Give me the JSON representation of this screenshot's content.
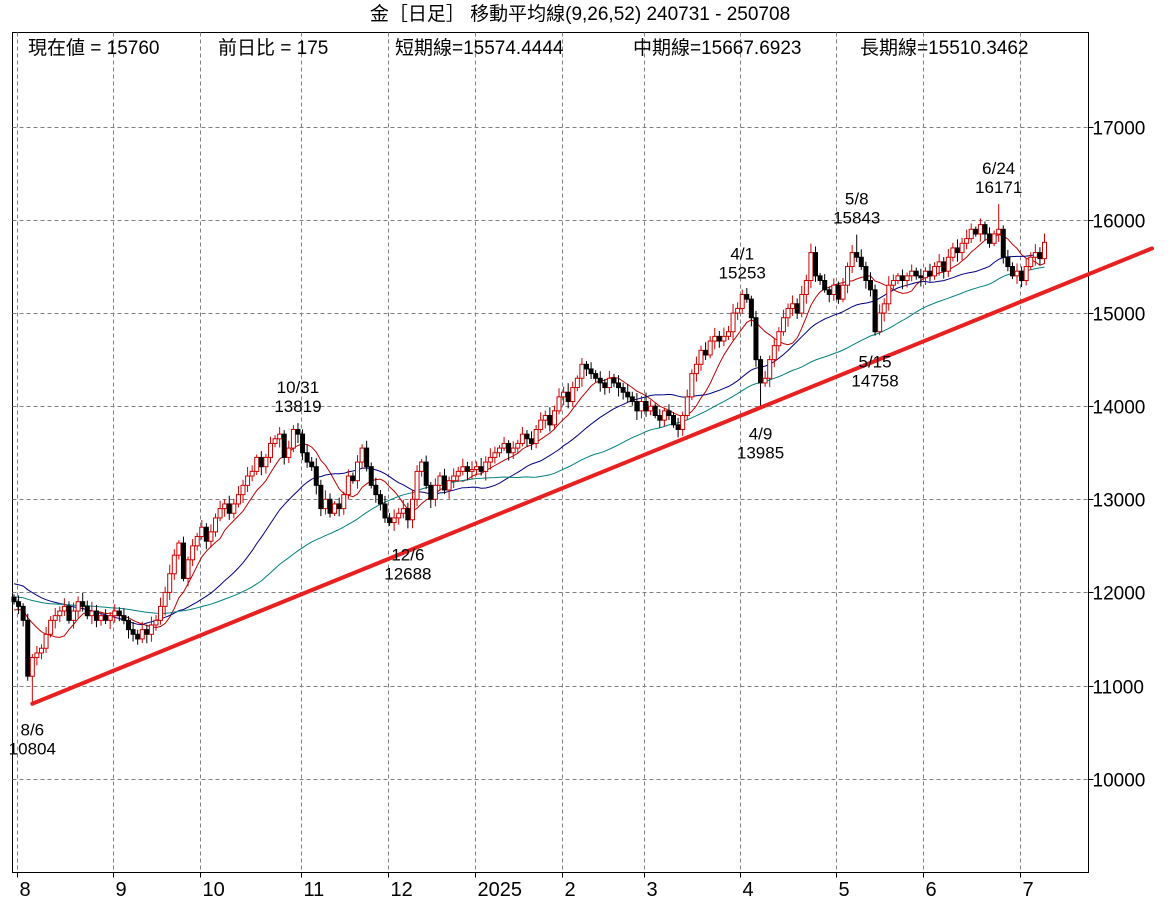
{
  "title": "金［日足］ 移動平均線(9,26,52)  240731 - 250708",
  "info": {
    "current": "現在値 = 15760",
    "change": "前日比 = 175",
    "short_ma": "短期線=15574.4444",
    "mid_ma": "中期線=15667.6923",
    "long_ma": "長期線=15510.3462"
  },
  "colors": {
    "up": "#cc0000",
    "down": "#000000",
    "ma_short": "#c00000",
    "ma_mid": "#000080",
    "ma_long": "#008080",
    "trendline": "#e82020",
    "grid": "#808080"
  },
  "chart_data": {
    "type": "candlestick",
    "ylim": [
      9000,
      18000
    ],
    "yticks": [
      "10000",
      "11000",
      "12000",
      "13000",
      "14000",
      "15000",
      "16000",
      "17000"
    ],
    "grid": true,
    "moving_averages": [
      9,
      26,
      52
    ],
    "months": [
      {
        "label": "",
        "closes": [
          11900
        ]
      },
      {
        "label": "8",
        "closes": [
          11850,
          11700,
          11100,
          11300,
          11350,
          11400,
          11550,
          11700,
          11750,
          11800,
          11850,
          11700,
          11800,
          11900,
          11850,
          11750,
          11800,
          11700,
          11750,
          11700,
          11750
        ]
      },
      {
        "label": "9",
        "closes": [
          11800,
          11750,
          11700,
          11600,
          11550,
          11500,
          11600,
          11550,
          11650,
          11700,
          11850,
          12000,
          12200,
          12400,
          12530,
          12150,
          12350,
          12500,
          12600
        ]
      },
      {
        "label": "10",
        "closes": [
          12700,
          12550,
          12650,
          12800,
          12900,
          12950,
          12850,
          12950,
          13050,
          13150,
          13250,
          13300,
          13450,
          13350,
          13450,
          13600,
          13650,
          13700,
          13450,
          13550,
          13750,
          13700
        ]
      },
      {
        "label": "11",
        "closes": [
          13500,
          13400,
          13350,
          13150,
          12900,
          13000,
          12850,
          12950,
          12900,
          13050,
          13250,
          13200,
          13400,
          13550,
          13350,
          13150,
          13050,
          12950,
          12800
        ]
      },
      {
        "label": "12",
        "closes": [
          12750,
          12800,
          12850,
          12900,
          12780,
          13000,
          13300,
          13400,
          13150,
          13000,
          13150,
          13250,
          13100,
          13200,
          13250,
          13300,
          13350,
          13300,
          13320
        ]
      },
      {
        "label": "2025",
        "closes": [
          13350,
          13300,
          13400,
          13450,
          13500,
          13550,
          13600,
          13500,
          13550,
          13600,
          13700,
          13650,
          13600,
          13750,
          13850,
          13900,
          13800,
          13950,
          14100
        ]
      },
      {
        "label": "2",
        "closes": [
          14150,
          14050,
          14200,
          14300,
          14450,
          14400,
          14350,
          14300,
          14250,
          14200,
          14300,
          14250,
          14200,
          14150,
          14100,
          14050,
          13950,
          14050
        ]
      },
      {
        "label": "3",
        "closes": [
          13950,
          14000,
          13900,
          13850,
          13950,
          13900,
          13800,
          13750,
          13900,
          14100,
          14350,
          14450,
          14600,
          14550,
          14700,
          14750,
          14700,
          14750,
          14800,
          15000,
          15050
        ]
      },
      {
        "label": "4",
        "closes": [
          15200,
          15150,
          14950,
          14500,
          14250,
          14300,
          14500,
          14650,
          14800,
          14950,
          15050,
          15100,
          15000,
          15200,
          15350,
          15650,
          15400,
          15350,
          15250,
          15200,
          15300
        ]
      },
      {
        "label": "5",
        "closes": [
          15150,
          15300,
          15500,
          15650,
          15600,
          15500,
          15350,
          15250,
          14800,
          15000,
          15100,
          15300,
          15350,
          15400,
          15350,
          15400,
          15450,
          15400,
          15380
        ]
      },
      {
        "label": "6",
        "closes": [
          15450,
          15400,
          15500,
          15550,
          15450,
          15600,
          15700,
          15650,
          15750,
          15800,
          15900,
          15850,
          15950,
          15850,
          15750,
          15850,
          15900,
          15600,
          15500,
          15400,
          15450
        ]
      },
      {
        "label": "7",
        "closes": [
          15350,
          15500,
          15600,
          15650,
          15585,
          15760
        ]
      }
    ],
    "annotations": [
      {
        "date": "8/6",
        "value": "10804",
        "kind": "low"
      },
      {
        "date": "10/31",
        "value": "13819",
        "kind": "high"
      },
      {
        "date": "12/6",
        "value": "12688",
        "kind": "low"
      },
      {
        "date": "4/1",
        "value": "15253",
        "kind": "high"
      },
      {
        "date": "4/9",
        "value": "13985",
        "kind": "low"
      },
      {
        "date": "5/8",
        "value": "15843",
        "kind": "high"
      },
      {
        "date": "5/15",
        "value": "14758",
        "kind": "low"
      },
      {
        "date": "6/24",
        "value": "16171",
        "kind": "high"
      }
    ],
    "trendline": {
      "from": {
        "date": "8/6",
        "value": 10804
      },
      "through": {
        "date": "4/9",
        "value": 13985
      }
    }
  }
}
